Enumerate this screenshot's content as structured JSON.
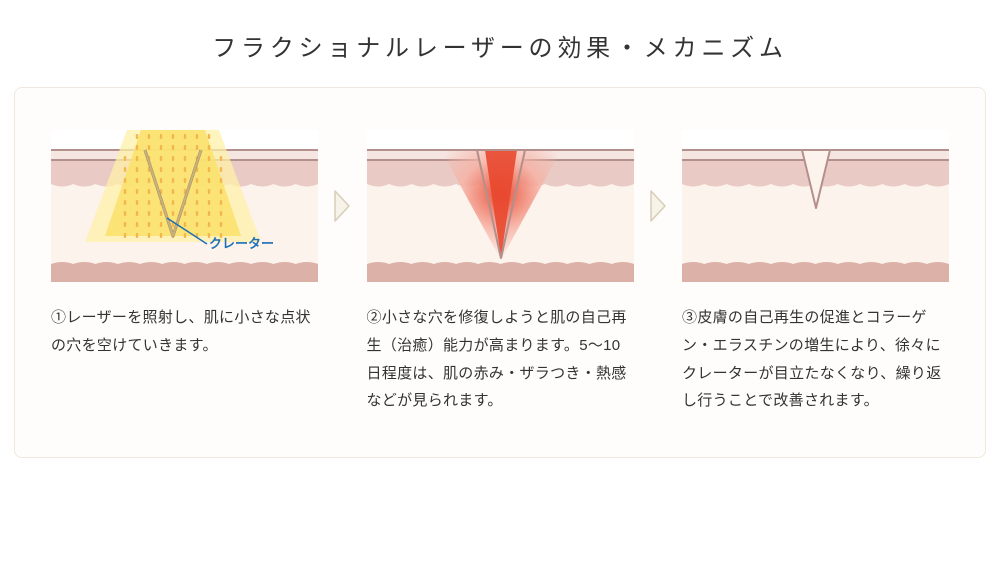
{
  "title": "フラクショナルレーザーの効果・メカニズム",
  "colors": {
    "page_bg": "#ffffff",
    "panel_border": "#f0e8dc",
    "panel_bg": "#fefdfb",
    "text": "#333333",
    "arrow_stroke": "#d8cdb8",
    "arrow_fill": "#f8f3e8",
    "skin_top_lines": "#b3908b",
    "skin_epidermis": "#e9cac4",
    "skin_dermis": "#fdf3ed",
    "skin_base": "#dcb1a8",
    "crater_line": "#c8b27f",
    "crater_line_shadow": "#a88f5c",
    "crater_label_text": "#1e6fb5",
    "crater_label_line": "#1e6fb5",
    "laser_fill": "#fae069",
    "laser_fill_light": "#fdf0a8",
    "laser_dot": "#f2b64d",
    "healing_red": "#e8482f",
    "healing_red_glow": "#f6b3a6"
  },
  "typography": {
    "title_fontsize": 24,
    "title_letter_spacing_em": 0.2,
    "desc_fontsize": 15,
    "desc_line_height": 1.85,
    "crater_label_fontsize": 13
  },
  "layout": {
    "illus_width": 267,
    "illus_height": 152,
    "panel_radius": 8,
    "arrow_w": 18,
    "arrow_h": 34
  },
  "crater_label": "クレーター",
  "steps": [
    {
      "num": "①",
      "text": "レーザーを照射し、肌に小さな点状の穴を空けていきます。"
    },
    {
      "num": "②",
      "text": "小さな穴を修復しようと肌の自己再生（治癒）能力が高まります。5〜10日程度は、肌の赤み・ザラつき・熱感などが見られます。"
    },
    {
      "num": "③",
      "text": "皮膚の自己再生の促進とコラーゲン・エラスチンの増生により、徐々にクレーターが目立たなくなり、繰り返し行うことで改善されます。"
    }
  ]
}
